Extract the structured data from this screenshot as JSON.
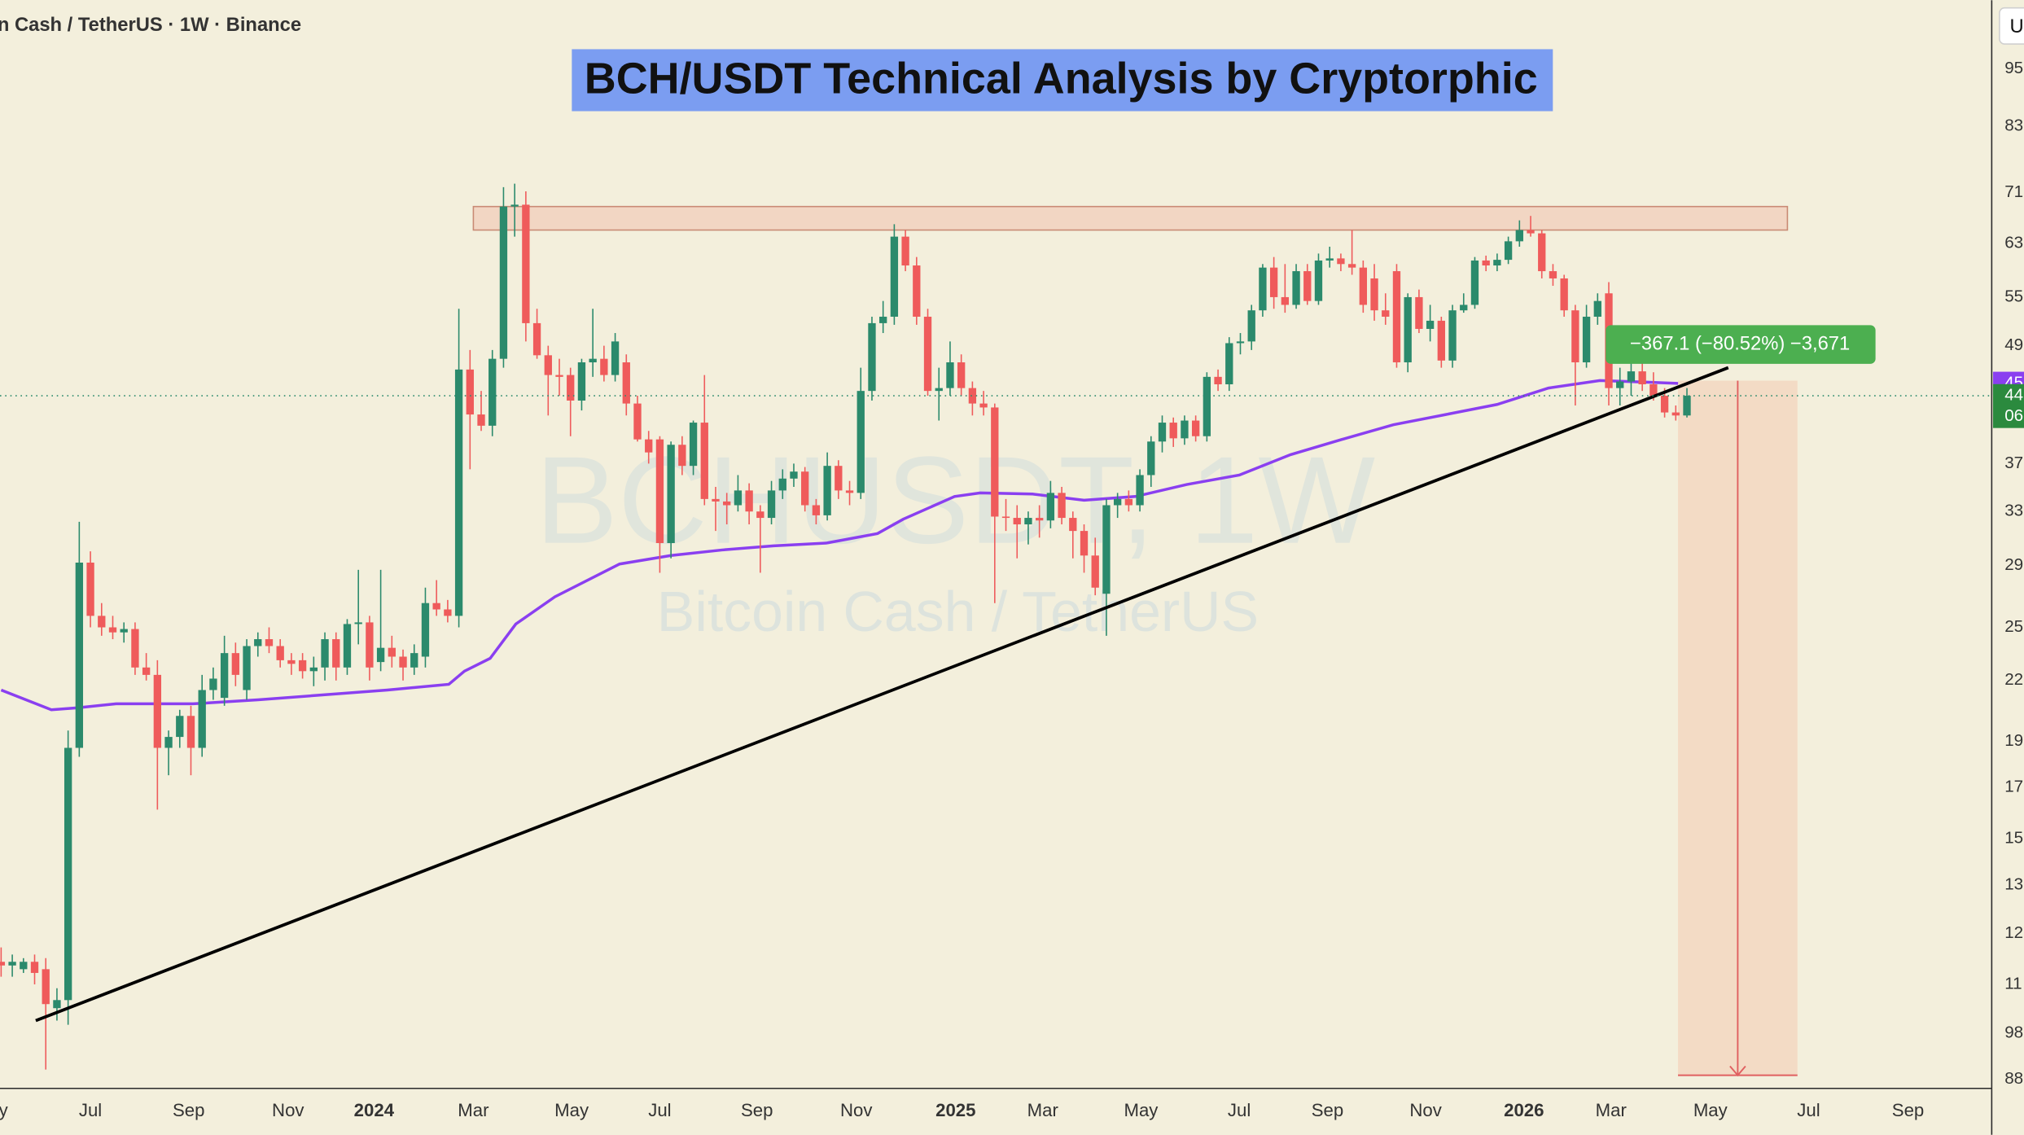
{
  "header": {
    "symbol": "n Cash / TetherUS · 1W · Binance",
    "corner_button": "U"
  },
  "chart_data": {
    "type": "candlestick",
    "title": "BCH/USDT Technical Analysis by Cryptorphic",
    "watermark": "BCHUSDT, 1W",
    "watermark_subtitle": "Bitcoin Cash / TetherUS",
    "log_scale": true,
    "xlim": [
      -0.1,
      178.3
    ],
    "ylim": [
      86.1,
      1117
    ],
    "xticks": [
      {
        "value": 0.2,
        "label": "y"
      },
      {
        "value": 8.0,
        "label": "Jul"
      },
      {
        "value": 16.8,
        "label": "Sep"
      },
      {
        "value": 25.7,
        "label": "Nov"
      },
      {
        "value": 33.4,
        "label": "2024"
      },
      {
        "value": 42.3,
        "label": "Mar"
      },
      {
        "value": 51.1,
        "label": "May"
      },
      {
        "value": 59.0,
        "label": "Jul"
      },
      {
        "value": 67.7,
        "label": "Sep"
      },
      {
        "value": 76.6,
        "label": "Nov"
      },
      {
        "value": 85.5,
        "label": "2025"
      },
      {
        "value": 93.3,
        "label": "Mar"
      },
      {
        "value": 102.1,
        "label": "May"
      },
      {
        "value": 110.9,
        "label": "Jul"
      },
      {
        "value": 118.8,
        "label": "Sep"
      },
      {
        "value": 127.6,
        "label": "Nov"
      },
      {
        "value": 136.4,
        "label": "2026"
      },
      {
        "value": 144.2,
        "label": "Mar"
      },
      {
        "value": 153.1,
        "label": "May"
      },
      {
        "value": 161.9,
        "label": "Jul"
      },
      {
        "value": 170.8,
        "label": "Sep"
      }
    ],
    "yticks": [
      {
        "value": 950,
        "label": "95"
      },
      {
        "value": 830,
        "label": "83"
      },
      {
        "value": 710,
        "label": "71"
      },
      {
        "value": 630,
        "label": "63"
      },
      {
        "value": 555,
        "label": "55"
      },
      {
        "value": 495,
        "label": "49"
      },
      {
        "value": 375,
        "label": "37"
      },
      {
        "value": 335,
        "label": "33"
      },
      {
        "value": 295,
        "label": "29"
      },
      {
        "value": 255,
        "label": "25"
      },
      {
        "value": 225,
        "label": "22"
      },
      {
        "value": 195,
        "label": "19"
      },
      {
        "value": 175,
        "label": "17"
      },
      {
        "value": 155,
        "label": "15"
      },
      {
        "value": 139,
        "label": "13"
      },
      {
        "value": 124,
        "label": "12"
      },
      {
        "value": 110,
        "label": "11"
      },
      98,
      88
    ],
    "up_color": "#2b8a6c",
    "down_color": "#ef5b5b",
    "candles": {
      "x": [
        0,
        1,
        2,
        3,
        4,
        5,
        6,
        7,
        8,
        9,
        10,
        11,
        12,
        13,
        14,
        15,
        16,
        17,
        18,
        19,
        20,
        21,
        22,
        23,
        24,
        25,
        26,
        27,
        28,
        29,
        30,
        31,
        32,
        33,
        34,
        35,
        36,
        37,
        38,
        39,
        40,
        41,
        42,
        43,
        44,
        45,
        46,
        47,
        48,
        49,
        50,
        51,
        52,
        53,
        54,
        55,
        56,
        57,
        58,
        59,
        60,
        61,
        62,
        63,
        64,
        65,
        66,
        67,
        68,
        69,
        70,
        71,
        72,
        73,
        74,
        75,
        76,
        77,
        78,
        79,
        80,
        81,
        82,
        83,
        84,
        85,
        86,
        87,
        88,
        89,
        90,
        91,
        92,
        93,
        94,
        95,
        96,
        97,
        98,
        99,
        100,
        101,
        102,
        103,
        104,
        105,
        106,
        107,
        108,
        109,
        110,
        111,
        112,
        113,
        114,
        115,
        116,
        117,
        118,
        119,
        120,
        121,
        122,
        123,
        124,
        125,
        126,
        127,
        128,
        129,
        130,
        131,
        132,
        133,
        134,
        135,
        136,
        137,
        138,
        139,
        140,
        141,
        142,
        143,
        144,
        145,
        146,
        147,
        148,
        149,
        150,
        151
      ],
      "ohlc": [
        [
          116,
          120,
          112,
          115
        ],
        [
          115,
          118,
          112,
          116
        ],
        [
          114,
          117,
          113,
          116
        ],
        [
          116,
          118,
          110,
          113
        ],
        [
          114,
          117,
          90,
          105
        ],
        [
          104,
          109,
          101,
          106
        ],
        [
          106,
          200,
          100,
          192
        ],
        [
          192,
          327,
          188,
          297
        ],
        [
          297,
          305,
          255,
          262
        ],
        [
          262,
          270,
          250,
          255
        ],
        [
          255,
          262,
          248,
          252
        ],
        [
          252,
          258,
          246,
          254
        ],
        [
          254,
          258,
          228,
          232
        ],
        [
          232,
          240,
          225,
          228
        ],
        [
          228,
          236,
          166,
          192
        ],
        [
          192,
          200,
          180,
          197
        ],
        [
          197,
          210,
          192,
          207
        ],
        [
          207,
          212,
          180,
          192
        ],
        [
          192,
          228,
          188,
          220
        ],
        [
          220,
          232,
          215,
          226
        ],
        [
          216,
          250,
          212,
          240
        ],
        [
          240,
          246,
          222,
          228
        ],
        [
          220,
          248,
          215,
          244
        ],
        [
          244,
          252,
          238,
          248
        ],
        [
          248,
          255,
          240,
          244
        ],
        [
          244,
          248,
          232,
          236
        ],
        [
          236,
          240,
          228,
          234
        ],
        [
          236,
          240,
          226,
          230
        ],
        [
          230,
          238,
          222,
          232
        ],
        [
          232,
          252,
          225,
          248
        ],
        [
          248,
          252,
          225,
          232
        ],
        [
          232,
          260,
          228,
          257
        ],
        [
          257,
          292,
          245,
          258
        ],
        [
          258,
          262,
          225,
          232
        ],
        [
          235,
          292,
          230,
          243
        ],
        [
          243,
          250,
          232,
          238
        ],
        [
          238,
          242,
          225,
          232
        ],
        [
          232,
          245,
          228,
          240
        ],
        [
          238,
          280,
          232,
          270
        ],
        [
          270,
          285,
          262,
          266
        ],
        [
          266,
          272,
          258,
          262
        ],
        [
          262,
          540,
          255,
          468
        ],
        [
          468,
          490,
          370,
          421
        ],
        [
          421,
          445,
          405,
          410
        ],
        [
          410,
          490,
          400,
          480
        ],
        [
          480,
          719,
          470,
          687
        ],
        [
          687,
          725,
          640,
          690
        ],
        [
          690,
          712,
          500,
          522
        ],
        [
          522,
          540,
          480,
          484
        ],
        [
          484,
          495,
          420,
          462
        ],
        [
          462,
          480,
          440,
          460
        ],
        [
          462,
          470,
          400,
          435
        ],
        [
          435,
          480,
          425,
          476
        ],
        [
          476,
          540,
          460,
          480
        ],
        [
          480,
          495,
          455,
          462
        ],
        [
          462,
          510,
          455,
          500
        ],
        [
          476,
          485,
          420,
          432
        ],
        [
          432,
          440,
          395,
          397
        ],
        [
          397,
          405,
          375,
          385
        ],
        [
          397,
          400,
          290,
          311
        ],
        [
          311,
          395,
          300,
          392
        ],
        [
          392,
          400,
          365,
          373
        ],
        [
          373,
          415,
          365,
          413
        ],
        [
          413,
          462,
          340,
          345
        ],
        [
          345,
          355,
          320,
          343
        ],
        [
          343,
          350,
          325,
          340
        ],
        [
          340,
          365,
          335,
          352
        ],
        [
          352,
          358,
          325,
          335
        ],
        [
          335,
          340,
          290,
          330
        ],
        [
          330,
          360,
          325,
          352
        ],
        [
          352,
          370,
          345,
          362
        ],
        [
          362,
          375,
          355,
          368
        ],
        [
          368,
          372,
          335,
          340
        ],
        [
          340,
          345,
          325,
          332
        ],
        [
          332,
          385,
          328,
          373
        ],
        [
          373,
          378,
          345,
          352
        ],
        [
          352,
          360,
          340,
          350
        ],
        [
          350,
          470,
          345,
          445
        ],
        [
          445,
          530,
          435,
          522
        ],
        [
          522,
          550,
          510,
          530
        ],
        [
          530,
          659,
          520,
          640
        ],
        [
          640,
          650,
          590,
          598
        ],
        [
          598,
          610,
          520,
          530
        ],
        [
          530,
          540,
          440,
          445
        ],
        [
          445,
          470,
          415,
          448
        ],
        [
          448,
          500,
          440,
          476
        ],
        [
          476,
          485,
          440,
          448
        ],
        [
          448,
          455,
          420,
          432
        ],
        [
          432,
          445,
          420,
          428
        ],
        [
          428,
          432,
          270,
          331
        ],
        [
          331,
          345,
          320,
          330
        ],
        [
          330,
          340,
          300,
          325
        ],
        [
          325,
          335,
          310,
          330
        ],
        [
          330,
          340,
          315,
          328
        ],
        [
          328,
          360,
          322,
          350
        ],
        [
          350,
          355,
          325,
          330
        ],
        [
          330,
          335,
          300,
          320
        ],
        [
          320,
          325,
          290,
          302
        ],
        [
          302,
          315,
          275,
          280
        ],
        [
          276,
          345,
          250,
          340
        ],
        [
          340,
          350,
          330,
          345
        ],
        [
          345,
          352,
          335,
          340
        ],
        [
          340,
          370,
          335,
          365
        ],
        [
          365,
          400,
          355,
          395
        ],
        [
          395,
          420,
          385,
          413
        ],
        [
          413,
          418,
          390,
          398
        ],
        [
          398,
          420,
          392,
          415
        ],
        [
          415,
          420,
          395,
          400
        ],
        [
          400,
          465,
          395,
          460
        ],
        [
          460,
          468,
          445,
          452
        ],
        [
          452,
          505,
          445,
          498
        ],
        [
          498,
          510,
          485,
          500
        ],
        [
          500,
          545,
          490,
          538
        ],
        [
          538,
          600,
          530,
          595
        ],
        [
          595,
          610,
          540,
          555
        ],
        [
          555,
          600,
          535,
          545
        ],
        [
          545,
          600,
          540,
          590
        ],
        [
          590,
          600,
          545,
          550
        ],
        [
          550,
          615,
          545,
          605
        ],
        [
          605,
          625,
          595,
          608
        ],
        [
          608,
          615,
          590,
          600
        ],
        [
          600,
          650,
          585,
          595
        ],
        [
          595,
          605,
          535,
          545
        ],
        [
          580,
          600,
          525,
          538
        ],
        [
          538,
          560,
          520,
          530
        ],
        [
          590,
          600,
          470,
          476
        ],
        [
          476,
          560,
          465,
          555
        ],
        [
          555,
          565,
          510,
          515
        ],
        [
          515,
          545,
          500,
          525
        ],
        [
          525,
          530,
          470,
          478
        ],
        [
          478,
          545,
          470,
          538
        ],
        [
          538,
          560,
          535,
          545
        ],
        [
          545,
          610,
          540,
          605
        ],
        [
          605,
          612,
          590,
          598
        ],
        [
          598,
          615,
          590,
          606
        ],
        [
          606,
          640,
          600,
          633
        ],
        [
          633,
          665,
          625,
          650
        ],
        [
          650,
          672,
          640,
          645
        ],
        [
          645,
          650,
          580,
          590
        ],
        [
          590,
          600,
          570,
          580
        ],
        [
          580,
          585,
          530,
          538
        ],
        [
          538,
          545,
          430,
          476
        ],
        [
          476,
          545,
          470,
          530
        ],
        [
          530,
          560,
          520,
          550
        ],
        [
          560,
          575,
          430,
          448
        ],
        [
          448,
          470,
          430,
          455
        ],
        [
          455,
          475,
          440,
          466
        ],
        [
          466,
          475,
          445,
          452
        ],
        [
          452,
          465,
          435,
          440
        ],
        [
          440,
          448,
          418,
          423
        ],
        [
          423,
          430,
          415,
          420
        ],
        [
          420,
          448,
          418,
          440
        ]
      ]
    },
    "moving_average": {
      "color": "#8a3ff0",
      "x": [
        0,
        4.5,
        6.8,
        10.3,
        17.2,
        23.0,
        34.6,
        40.1,
        41.5,
        43.8,
        46.1,
        49.6,
        55.4,
        60.0,
        64.6,
        69.2,
        73.9,
        78.5,
        80.8,
        85.4,
        87.7,
        92.4,
        97.0,
        101.6,
        106.2,
        110.9,
        115.5,
        120.1,
        124.7,
        129.4,
        134.0,
        138.6,
        143.2,
        147.9,
        150.2
      ],
      "values": [
        220,
        210,
        211,
        213,
        213,
        215,
        220,
        223,
        230,
        237,
        257,
        274,
        296,
        302,
        306,
        309,
        311,
        318,
        329,
        347,
        350,
        349,
        344,
        347,
        357,
        365,
        383,
        397,
        411,
        421,
        431,
        448,
        456,
        454,
        453
      ]
    },
    "trendline": {
      "color": "#000000",
      "x": [
        3.1,
        154.7
      ],
      "values": [
        101,
        470
      ]
    },
    "resistance_zone": {
      "x": [
        42.3,
        160.0
      ],
      "values": [
        650,
        687
      ]
    },
    "projection": {
      "x": [
        150.2,
        160.9
      ],
      "values": [
        455.9,
        88.8
      ],
      "label": "−367.1 (−80.52%) −3,671"
    },
    "price_marker": {
      "value": 440,
      "label": "44",
      "countdown": "06"
    },
    "ma_marker": {
      "value": 453,
      "label": "45"
    }
  }
}
